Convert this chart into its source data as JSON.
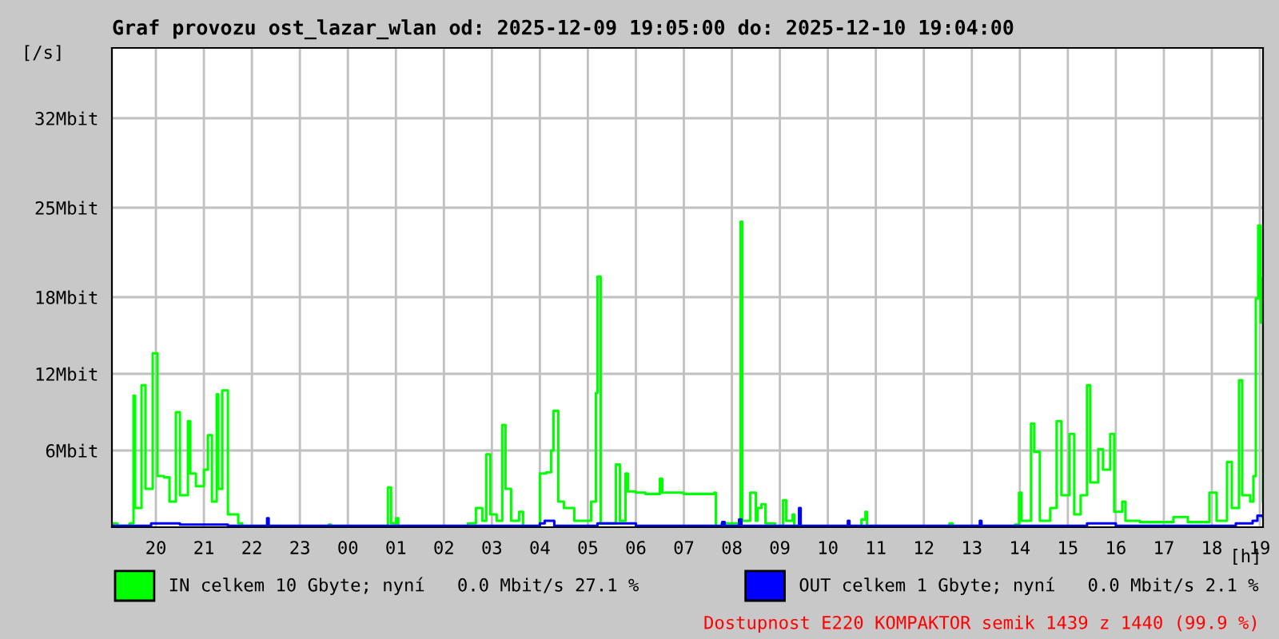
{
  "chart_data": {
    "type": "step",
    "title": "Graf provozu ost_lazar_wlan od: 2025-12-09 19:05:00 do: 2025-12-10 19:04:00",
    "xlabel": "[h]",
    "ylabel": "[/s]",
    "xlim": [
      "2025-12-09T19:05",
      "2025-12-10T19:04"
    ],
    "xticks": [
      {
        "value": "2025-12-09T20:00",
        "label": "20"
      },
      {
        "value": "2025-12-09T21:00",
        "label": "21"
      },
      {
        "value": "2025-12-09T22:00",
        "label": "22"
      },
      {
        "value": "2025-12-09T23:00",
        "label": "23"
      },
      {
        "value": "2025-12-10T00:00",
        "label": "00"
      },
      {
        "value": "2025-12-10T01:00",
        "label": "01"
      },
      {
        "value": "2025-12-10T02:00",
        "label": "02"
      },
      {
        "value": "2025-12-10T03:00",
        "label": "03"
      },
      {
        "value": "2025-12-10T04:00",
        "label": "04"
      },
      {
        "value": "2025-12-10T05:00",
        "label": "05"
      },
      {
        "value": "2025-12-10T06:00",
        "label": "06"
      },
      {
        "value": "2025-12-10T07:00",
        "label": "07"
      },
      {
        "value": "2025-12-10T08:00",
        "label": "08"
      },
      {
        "value": "2025-12-10T09:00",
        "label": "09"
      },
      {
        "value": "2025-12-10T10:00",
        "label": "10"
      },
      {
        "value": "2025-12-10T11:00",
        "label": "11"
      },
      {
        "value": "2025-12-10T12:00",
        "label": "12"
      },
      {
        "value": "2025-12-10T13:00",
        "label": "13"
      },
      {
        "value": "2025-12-10T14:00",
        "label": "14"
      },
      {
        "value": "2025-12-10T15:00",
        "label": "15"
      },
      {
        "value": "2025-12-10T16:00",
        "label": "16"
      },
      {
        "value": "2025-12-10T17:00",
        "label": "17"
      },
      {
        "value": "2025-12-10T18:00",
        "label": "18"
      },
      {
        "value": "2025-12-10T19:00",
        "label": "19"
      }
    ],
    "ylim": [
      0,
      37.5
    ],
    "yticks": [
      {
        "value": 6,
        "label": "6Mbit"
      },
      {
        "value": 12,
        "label": "12Mbit"
      },
      {
        "value": 18,
        "label": "18Mbit"
      },
      {
        "value": 25,
        "label": "25Mbit"
      },
      {
        "value": 32,
        "label": "32Mbit"
      }
    ],
    "grid": true,
    "legend": "bottom",
    "annotations": [
      "Dostupnost E220 KOMPAKTOR semik 1439 z 1440 (99.9 %)"
    ],
    "series": [
      {
        "name": "IN celkem 10 Gbyte; nyní   0.0 Mbit/s 27.1 %",
        "color": "#00ff00",
        "x": [
          "2025-12-09T19:05",
          "2025-12-09T19:07",
          "2025-12-09T19:12",
          "2025-12-09T19:27",
          "2025-12-09T19:32",
          "2025-12-09T19:34",
          "2025-12-09T19:42",
          "2025-12-09T19:47",
          "2025-12-09T19:56",
          "2025-12-09T20:02",
          "2025-12-09T20:10",
          "2025-12-09T20:17",
          "2025-12-09T20:25",
          "2025-12-09T20:30",
          "2025-12-09T20:40",
          "2025-12-09T20:43",
          "2025-12-09T20:50",
          "2025-12-09T21:00",
          "2025-12-09T21:05",
          "2025-12-09T21:10",
          "2025-12-09T21:16",
          "2025-12-09T21:18",
          "2025-12-09T21:23",
          "2025-12-09T21:30",
          "2025-12-09T21:43",
          "2025-12-09T21:48",
          "2025-12-09T23:36",
          "2025-12-09T23:39",
          "2025-12-10T00:47",
          "2025-12-10T00:50",
          "2025-12-10T00:54",
          "2025-12-10T01:00",
          "2025-12-10T01:03",
          "2025-12-10T02:30",
          "2025-12-10T02:40",
          "2025-12-10T02:48",
          "2025-12-10T02:53",
          "2025-12-10T02:58",
          "2025-12-10T03:06",
          "2025-12-10T03:13",
          "2025-12-10T03:17",
          "2025-12-10T03:24",
          "2025-12-10T03:34",
          "2025-12-10T03:39",
          "2025-12-10T04:00",
          "2025-12-10T04:08",
          "2025-12-10T04:14",
          "2025-12-10T04:17",
          "2025-12-10T04:23",
          "2025-12-10T04:30",
          "2025-12-10T04:43",
          "2025-12-10T05:04",
          "2025-12-10T05:10",
          "2025-12-10T05:12",
          "2025-12-10T05:16",
          "2025-12-10T05:35",
          "2025-12-10T05:40",
          "2025-12-10T05:47",
          "2025-12-10T05:50",
          "2025-12-10T06:00",
          "2025-12-10T06:12",
          "2025-12-10T06:30",
          "2025-12-10T06:33",
          "2025-12-10T07:00",
          "2025-12-10T07:38",
          "2025-12-10T07:40",
          "2025-12-10T07:47",
          "2025-12-10T08:09",
          "2025-12-10T08:11",
          "2025-12-10T08:13",
          "2025-12-10T08:23",
          "2025-12-10T08:30",
          "2025-12-10T08:32",
          "2025-12-10T08:37",
          "2025-12-10T08:42",
          "2025-12-10T08:54",
          "2025-12-10T09:04",
          "2025-12-10T09:08",
          "2025-12-10T09:16",
          "2025-12-10T09:18",
          "2025-12-10T10:42",
          "2025-12-10T10:47",
          "2025-12-10T10:49",
          "2025-12-10T12:32",
          "2025-12-10T12:36",
          "2025-12-10T13:54",
          "2025-12-10T13:59",
          "2025-12-10T14:02",
          "2025-12-10T14:14",
          "2025-12-10T14:18",
          "2025-12-10T14:25",
          "2025-12-10T14:38",
          "2025-12-10T14:46",
          "2025-12-10T14:52",
          "2025-12-10T15:02",
          "2025-12-10T15:08",
          "2025-12-10T15:16",
          "2025-12-10T15:24",
          "2025-12-10T15:28",
          "2025-12-10T15:38",
          "2025-12-10T15:44",
          "2025-12-10T15:53",
          "2025-12-10T15:58",
          "2025-12-10T16:08",
          "2025-12-10T16:12",
          "2025-12-10T16:30",
          "2025-12-10T17:00",
          "2025-12-10T17:12",
          "2025-12-10T17:30",
          "2025-12-10T17:57",
          "2025-12-10T18:06",
          "2025-12-10T18:19",
          "2025-12-10T18:25",
          "2025-12-10T18:34",
          "2025-12-10T18:38",
          "2025-12-10T18:48",
          "2025-12-10T18:52",
          "2025-12-10T18:55",
          "2025-12-10T18:58",
          "2025-12-10T19:01",
          "2025-12-10T19:02",
          "2025-12-10T19:04"
        ],
        "values": [
          0,
          0.3,
          0.1,
          0.3,
          10.3,
          1.5,
          11.1,
          3,
          13.6,
          4,
          3.9,
          2,
          9.0,
          2.5,
          8.3,
          4.2,
          3.2,
          4.5,
          7.2,
          2,
          10.4,
          3,
          10.7,
          1,
          0.3,
          0,
          0.2,
          0,
          0,
          3.1,
          0.3,
          0.7,
          0,
          0.3,
          1.5,
          0.5,
          5.7,
          1,
          0.5,
          8.0,
          3,
          0.5,
          1.2,
          0,
          4.2,
          4.3,
          6.0,
          9.1,
          2,
          1.5,
          0.5,
          2,
          10.5,
          19.6,
          0.3,
          4.9,
          0.5,
          4.2,
          2.8,
          2.7,
          2.6,
          3.8,
          2.7,
          2.6,
          2.7,
          0,
          0.3,
          0.2,
          23.9,
          0.5,
          2.7,
          0.5,
          1.5,
          1.8,
          0.3,
          0,
          2.1,
          0.5,
          1,
          0,
          0.6,
          1.2,
          0,
          0.3,
          0,
          0.2,
          2.7,
          0.5,
          8.1,
          5.9,
          0.5,
          1.5,
          8.3,
          2.5,
          7.3,
          1,
          2.5,
          11.1,
          3.5,
          6.1,
          4.5,
          7.3,
          1.2,
          2,
          0.5,
          0.4,
          0.4,
          0.8,
          0.4,
          2.7,
          0.5,
          5.1,
          1.5,
          11.5,
          2.5,
          2,
          4,
          17.9,
          23.6,
          16,
          19.5,
          2
        ]
      },
      {
        "name": "OUT celkem 1 Gbyte; nyní   0.0 Mbit/s 2.1 %",
        "color": "#0000ff",
        "x": [
          "2025-12-09T19:05",
          "2025-12-09T19:54",
          "2025-12-09T20:30",
          "2025-12-09T21:30",
          "2025-12-09T22:15",
          "2025-12-09T22:19",
          "2025-12-09T22:21",
          "2025-12-10T04:00",
          "2025-12-10T04:06",
          "2025-12-10T04:18",
          "2025-12-10T05:12",
          "2025-12-10T06:00",
          "2025-12-10T07:48",
          "2025-12-10T07:51",
          "2025-12-10T08:09",
          "2025-12-10T08:12",
          "2025-12-10T09:23",
          "2025-12-10T09:24",
          "2025-12-10T09:26",
          "2025-12-10T10:24",
          "2025-12-10T10:25",
          "2025-12-10T10:27",
          "2025-12-10T13:09",
          "2025-12-10T13:10",
          "2025-12-10T13:12",
          "2025-12-10T15:24",
          "2025-12-10T16:00",
          "2025-12-10T18:00",
          "2025-12-10T18:30",
          "2025-12-10T18:51",
          "2025-12-10T18:57",
          "2025-12-10T19:04"
        ],
        "values": [
          0.1,
          0.3,
          0.2,
          0.1,
          0.1,
          0.7,
          0.1,
          0.3,
          0.5,
          0.1,
          0.3,
          0.1,
          0.4,
          0.1,
          0.6,
          0.1,
          0.1,
          1.5,
          0.1,
          0.1,
          0.5,
          0.1,
          0.1,
          0.5,
          0.1,
          0.3,
          0.1,
          0.1,
          0.3,
          0.5,
          0.9,
          0.8
        ]
      }
    ]
  }
}
